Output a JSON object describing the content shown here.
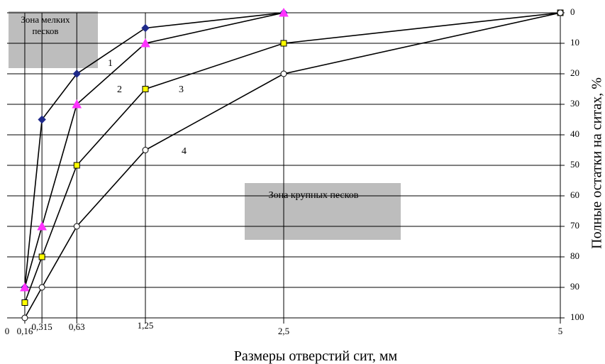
{
  "chart_data": {
    "type": "line",
    "xlabel": "Размеры отверстий сит, мм",
    "ylabel": "Полные остатки на ситах, %",
    "annotations": [
      "Зона мелких песков",
      "Зона крупных песков"
    ],
    "xlim": [
      0,
      5
    ],
    "xticks": [
      0,
      {
        "value": 0.16,
        "label": "0,16"
      },
      {
        "value": 0.315,
        "label": "0,315"
      },
      {
        "value": 0.63,
        "label": "0,63"
      },
      {
        "value": 1.25,
        "label": "1,25"
      },
      {
        "value": 2.5,
        "label": "2,5"
      },
      5
    ],
    "ylim": [
      0,
      100
    ],
    "y_inverted": true,
    "y_axis_side": "right",
    "yticks": [
      0,
      10,
      20,
      30,
      40,
      50,
      60,
      70,
      80,
      90,
      100
    ],
    "grid": true,
    "series": [
      {
        "name": "1",
        "color": "#1f2a8a",
        "marker": "diamond",
        "x": [
          0.16,
          0.315,
          0.63,
          1.25,
          2.5
        ],
        "values": [
          90,
          35,
          20,
          5,
          0
        ]
      },
      {
        "name": "2",
        "color": "#ff33ff",
        "marker": "triangle",
        "x": [
          0.16,
          0.315,
          0.63,
          1.25,
          2.5
        ],
        "values": [
          90,
          70,
          30,
          10,
          0
        ]
      },
      {
        "name": "3",
        "color": "#ffff00",
        "marker": "square",
        "x": [
          0.16,
          0.315,
          0.63,
          1.25,
          2.5,
          5
        ],
        "values": [
          95,
          80,
          50,
          25,
          10,
          0
        ]
      },
      {
        "name": "4",
        "color": "#ffffff",
        "marker": "circle",
        "x": [
          0.16,
          0.315,
          0.63,
          1.25,
          2.5,
          5
        ],
        "values": [
          100,
          90,
          70,
          45,
          20,
          0
        ]
      }
    ]
  }
}
